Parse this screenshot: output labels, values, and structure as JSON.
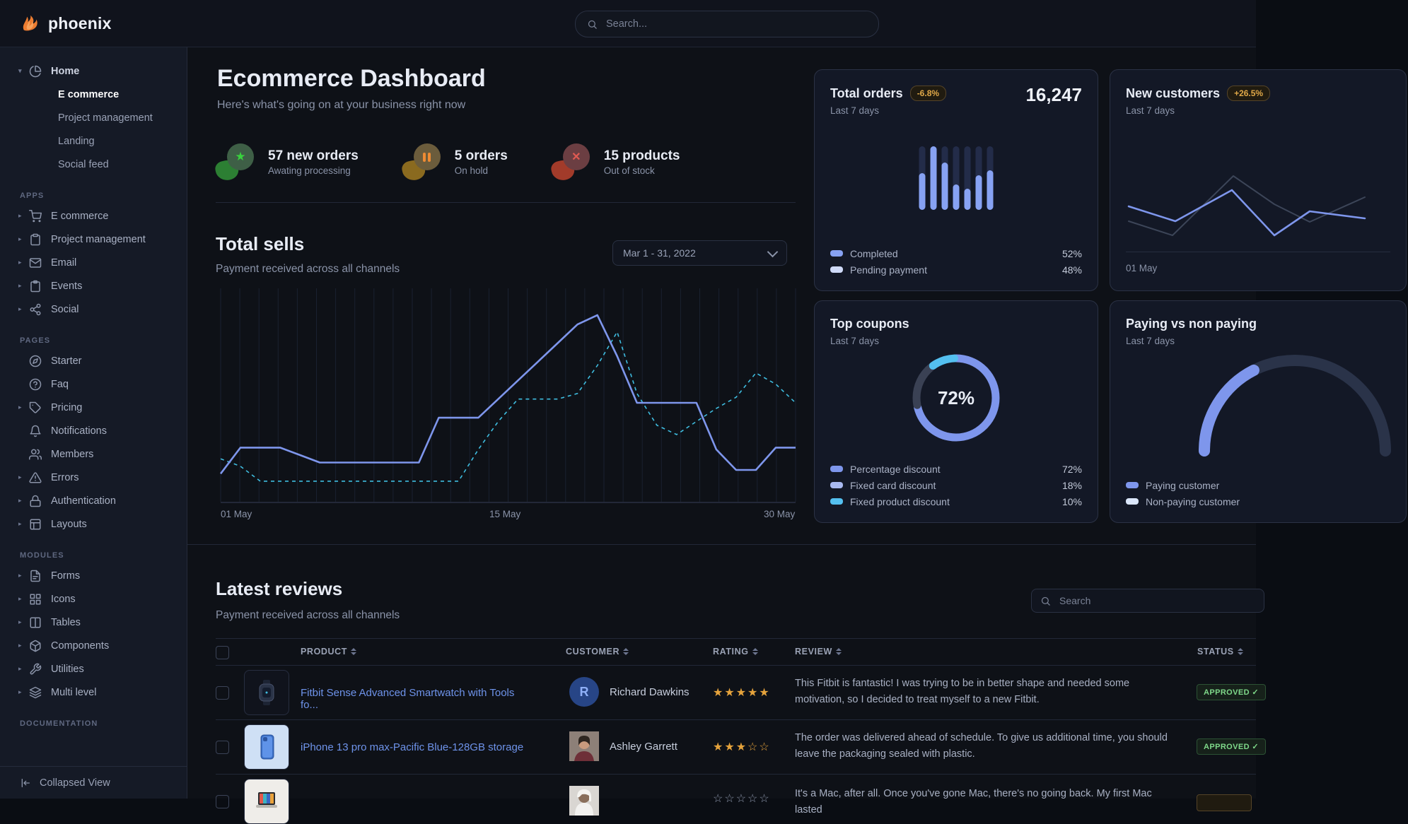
{
  "navbar": {
    "brand": "phoenix",
    "search_placeholder": "Search..."
  },
  "sidebar": {
    "home": {
      "label": "Home",
      "icon": "pie-chart-icon",
      "children": [
        {
          "label": "E commerce",
          "active": true
        },
        {
          "label": "Project management",
          "active": false
        },
        {
          "label": "Landing",
          "active": false
        },
        {
          "label": "Social feed",
          "active": false
        }
      ]
    },
    "sections": [
      {
        "label": "APPS",
        "items": [
          {
            "label": "E commerce",
            "icon": "cart-icon"
          },
          {
            "label": "Project management",
            "icon": "clipboard-icon"
          },
          {
            "label": "Email",
            "icon": "mail-icon"
          },
          {
            "label": "Events",
            "icon": "calendar-icon"
          },
          {
            "label": "Social",
            "icon": "share-icon"
          }
        ]
      },
      {
        "label": "PAGES",
        "items": [
          {
            "label": "Starter",
            "icon": "compass-icon"
          },
          {
            "label": "Faq",
            "icon": "help-circle-icon"
          },
          {
            "label": "Pricing",
            "icon": "tag-icon"
          },
          {
            "label": "Notifications",
            "icon": "bell-icon"
          },
          {
            "label": "Members",
            "icon": "users-icon"
          },
          {
            "label": "Errors",
            "icon": "alert-triangle-icon"
          },
          {
            "label": "Authentication",
            "icon": "lock-icon"
          },
          {
            "label": "Layouts",
            "icon": "layout-icon"
          }
        ]
      },
      {
        "label": "MODULES",
        "items": [
          {
            "label": "Forms",
            "icon": "file-text-icon"
          },
          {
            "label": "Icons",
            "icon": "grid-icon"
          },
          {
            "label": "Tables",
            "icon": "columns-icon"
          },
          {
            "label": "Components",
            "icon": "package-icon"
          },
          {
            "label": "Utilities",
            "icon": "wrench-icon"
          },
          {
            "label": "Multi level",
            "icon": "layers-icon"
          }
        ]
      },
      {
        "label": "DOCUMENTATION",
        "items": []
      }
    ],
    "collapse_label": "Collapsed View"
  },
  "header": {
    "title": "Ecommerce Dashboard",
    "subtitle": "Here's what's going on at your business right now"
  },
  "stats": [
    {
      "title": "57 new orders",
      "sub": "Awating processing",
      "icon": "star-icon",
      "blob": "#2c7f33",
      "bubble": "#3e5f46",
      "glyph_color": "#39d23e"
    },
    {
      "title": "5 orders",
      "sub": "On hold",
      "icon": "pause-icon",
      "blob": "#8a6a1f",
      "bubble": "#6b5c3c",
      "glyph_color": "#ef8b33"
    },
    {
      "title": "15 products",
      "sub": "Out of stock",
      "icon": "x-icon",
      "blob": "#a23b2a",
      "bubble": "#6b3e42",
      "glyph_color": "#e05a52"
    }
  ],
  "total_sells": {
    "title": "Total sells",
    "subtitle": "Payment received across all channels",
    "date_range": "Mar 1 - 31, 2022",
    "x_labels": [
      "01 May",
      "15 May",
      "30 May"
    ]
  },
  "cards": {
    "total_orders": {
      "title": "Total orders",
      "badge": "-6.8%",
      "value": "16,247",
      "period": "Last 7 days",
      "legend": [
        {
          "label": "Completed",
          "value": "52%",
          "color": "#87a2f3"
        },
        {
          "label": "Pending payment",
          "value": "48%",
          "color": "#cfdaf8"
        }
      ]
    },
    "new_customers": {
      "title": "New customers",
      "badge": "+26.5%",
      "period": "Last 7 days",
      "x_label": "01 May"
    },
    "top_coupons": {
      "title": "Top coupons",
      "period": "Last 7 days",
      "center_label": "72%",
      "legend": [
        {
          "label": "Percentage discount",
          "value": "72%",
          "color": "#7e96ec"
        },
        {
          "label": "Fixed card discount",
          "value": "18%",
          "color": "#a9b9f0"
        },
        {
          "label": "Fixed product discount",
          "value": "10%",
          "color": "#54c0f0"
        }
      ]
    },
    "paying_vs_non_paying": {
      "title": "Paying vs non paying",
      "period": "Last 7 days",
      "legend": [
        {
          "label": "Paying customer",
          "color": "#7e96ec"
        },
        {
          "label": "Non-paying customer",
          "color": "#dbe7fb"
        }
      ]
    }
  },
  "reviews": {
    "title": "Latest reviews",
    "subtitle": "Payment received across all channels",
    "search_placeholder": "Search",
    "columns": [
      "PRODUCT",
      "CUSTOMER",
      "RATING",
      "REVIEW",
      "STATUS"
    ],
    "rows": [
      {
        "product": "Fitbit Sense Advanced Smartwatch with Tools fo...",
        "customer": "Richard Dawkins",
        "avatar_initial": "R",
        "rating": 5,
        "stars": "★★★★★",
        "review": "This Fitbit is fantastic! I was trying to be in better shape and needed some motivation, so I decided to treat myself to a new Fitbit.",
        "status": "APPROVED",
        "status_check": "✓",
        "status_style": "success"
      },
      {
        "product": "iPhone 13 pro max-Pacific Blue-128GB storage",
        "customer": "Ashley Garrett",
        "rating": 3,
        "stars": "★★★☆☆",
        "review": "The order was delivered ahead of schedule. To give us additional time, you should leave the packaging sealed with plastic.",
        "status": "APPROVED",
        "status_check": "✓",
        "status_style": "success"
      },
      {
        "product": "",
        "customer": "",
        "rating": 0,
        "stars": "☆☆☆☆☆",
        "review": "It's a Mac, after all. Once you've gone Mac, there's no going back. My first Mac lasted",
        "status": "",
        "status_check": "",
        "status_style": "warning"
      }
    ]
  },
  "chart_data": [
    {
      "type": "line",
      "title": "Total sells",
      "xlabel": "",
      "ylabel": "",
      "x_labels": [
        "01 May",
        "15 May",
        "30 May"
      ],
      "grid": "vertical",
      "ylim": [
        0,
        100
      ],
      "series": [
        {
          "name": "payments",
          "color": "#7e96ec",
          "style": "solid",
          "values": [
            12,
            26,
            26,
            26,
            22,
            18,
            18,
            18,
            18,
            18,
            18,
            42,
            42,
            42,
            52,
            62,
            72,
            82,
            92,
            97,
            75,
            50,
            50,
            50,
            50,
            25,
            14,
            14,
            26,
            26
          ]
        },
        {
          "name": "comparison",
          "color": "#3fbde0",
          "style": "dashed",
          "values": [
            20,
            16,
            8,
            8,
            8,
            8,
            8,
            8,
            8,
            8,
            8,
            8,
            8,
            25,
            40,
            52,
            52,
            52,
            55,
            70,
            88,
            55,
            38,
            33,
            40,
            47,
            53,
            66,
            60,
            50
          ]
        }
      ]
    },
    {
      "type": "bar",
      "title": "Total orders - Last 7 days",
      "values_pct": [
        58,
        100,
        74,
        40,
        33,
        55,
        62
      ],
      "track_color": "#232c49",
      "fill_color": "#87a2f3",
      "legend": [
        {
          "label": "Completed",
          "value": 52
        },
        {
          "label": "Pending payment",
          "value": 48
        }
      ]
    },
    {
      "type": "line",
      "title": "New customers - Last 7 days",
      "x_labels": [
        "01 May"
      ],
      "series": [
        {
          "name": "previous",
          "color": "#3c4558",
          "points": [
            [
              4,
              74
            ],
            [
              66,
              94
            ],
            [
              152,
              10
            ],
            [
              210,
              50
            ],
            [
              260,
              75
            ],
            [
              338,
              40
            ]
          ]
        },
        {
          "name": "current",
          "color": "#7e96ec",
          "points": [
            [
              4,
              53
            ],
            [
              70,
              74
            ],
            [
              150,
              30
            ],
            [
              210,
              94
            ],
            [
              260,
              60
            ],
            [
              338,
              70
            ]
          ]
        }
      ]
    },
    {
      "type": "donut",
      "title": "Top coupons - Last 7 days",
      "center_label": "72%",
      "slices": [
        {
          "label": "Percentage discount",
          "pct": 72,
          "color": "#7e96ec"
        },
        {
          "label": "Fixed card discount",
          "pct": 18,
          "color": "#3a4154"
        },
        {
          "label": "Fixed product discount",
          "pct": 10,
          "color": "#54c0f0"
        }
      ]
    },
    {
      "type": "gauge",
      "title": "Paying vs non paying - Last 7 days",
      "segments": [
        {
          "label": "Paying customer",
          "pct": 35,
          "color": "#7e96ec"
        },
        {
          "label": "Non-paying customer",
          "pct": 65,
          "color": "#2a3349"
        }
      ]
    }
  ]
}
